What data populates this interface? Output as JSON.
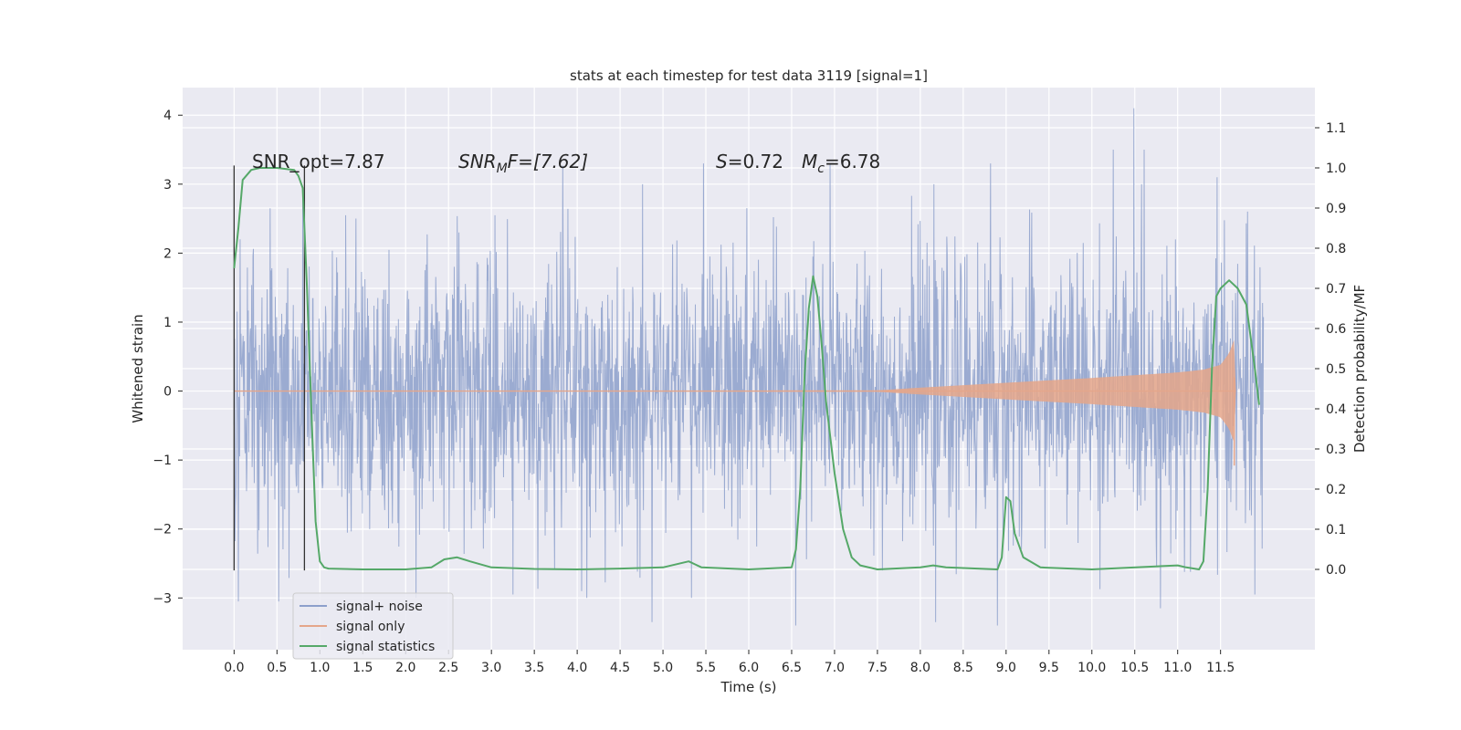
{
  "chart_data": {
    "type": "line",
    "title": "stats at each timestep for test data 3119 [signal=1]",
    "xlabel": "Time (s)",
    "ylabel": "Whitened strain",
    "ylabel_right": "Detection probability/MF",
    "xlim": [
      -0.6,
      12.6
    ],
    "ylim": [
      -3.75,
      4.4
    ],
    "ylim_right": [
      -0.2,
      1.2
    ],
    "x_ticks": [
      0.0,
      0.5,
      1.0,
      1.5,
      2.0,
      2.5,
      3.0,
      3.5,
      4.0,
      4.5,
      5.0,
      5.5,
      6.0,
      6.5,
      7.0,
      7.5,
      8.0,
      8.5,
      9.0,
      9.5,
      10.0,
      10.5,
      11.0,
      11.5
    ],
    "x_tick_labels": [
      "0.0",
      "0.5",
      "1.0",
      "1.5",
      "2.0",
      "2.5",
      "3.0",
      "3.5",
      "4.0",
      "4.5",
      "5.0",
      "5.5",
      "6.0",
      "6.5",
      "7.0",
      "7.5",
      "8.0",
      "8.5",
      "9.0",
      "9.5",
      "10.0",
      "10.5",
      "11.0",
      "11.5"
    ],
    "y_ticks": [
      -3,
      -2,
      -1,
      0,
      1,
      2,
      3,
      4
    ],
    "y_tick_labels": [
      "−3",
      "−2",
      "−1",
      "0",
      "1",
      "2",
      "3",
      "4"
    ],
    "y_ticks_right": [
      0.0,
      0.1,
      0.2,
      0.3,
      0.4,
      0.5,
      0.6,
      0.7,
      0.8,
      0.9,
      1.0,
      1.1
    ],
    "y_tick_labels_right": [
      "0.0",
      "0.1",
      "0.2",
      "0.3",
      "0.4",
      "0.5",
      "0.6",
      "0.7",
      "0.8",
      "0.9",
      "1.0",
      "1.1"
    ],
    "grid": true,
    "legend_position": "bottom-left",
    "annotations": {
      "snr_opt": "SNR_opt=7.87",
      "snr_mf_base": "SNR",
      "snr_mf_sub": "M",
      "snr_mf_rest": "F=[7.62]",
      "s_label": "S",
      "s_value": "=0.72",
      "mc_base": "M",
      "mc_sub": "c",
      "mc_value": "=6.78"
    },
    "window_markers": {
      "x": [
        0.0,
        0.82
      ],
      "y": [
        -2.6,
        3.27
      ]
    },
    "series": [
      {
        "name": "signal+ noise",
        "color": "#8da0cb",
        "axis": "left",
        "duration_s": 12.0,
        "envelope_note": "dense noise, typical amplitude within ±1.5, peaks near 3 to 4",
        "peaks": [
          [
            0.07,
            2.2
          ],
          [
            0.42,
            2.65
          ],
          [
            0.8,
            2.9
          ],
          [
            1.3,
            2.55
          ],
          [
            2.62,
            2.3
          ],
          [
            3.04,
            2.55
          ],
          [
            3.83,
            3.27
          ],
          [
            5.47,
            3.3
          ],
          [
            6.95,
            3.3
          ],
          [
            8.82,
            3.3
          ],
          [
            10.25,
            3.5
          ],
          [
            10.49,
            4.1
          ],
          [
            10.61,
            3.5
          ],
          [
            11.46,
            3.1
          ],
          [
            0.05,
            -3.05
          ],
          [
            0.52,
            -3.05
          ],
          [
            3.25,
            -2.95
          ],
          [
            4.05,
            -2.9
          ],
          [
            4.87,
            -3.35
          ],
          [
            6.55,
            -3.4
          ],
          [
            8.18,
            -3.35
          ],
          [
            8.9,
            -3.4
          ],
          [
            10.8,
            -3.15
          ],
          [
            11.9,
            -2.95
          ]
        ]
      },
      {
        "name": "signal only",
        "color": "#e5a68a",
        "axis": "left",
        "chirp_points": [
          [
            0.0,
            0.0
          ],
          [
            7.5,
            0.01
          ],
          [
            8.0,
            0.05
          ],
          [
            9.0,
            0.12
          ],
          [
            10.0,
            0.19
          ],
          [
            10.5,
            0.23
          ],
          [
            11.0,
            0.27
          ],
          [
            11.3,
            0.31
          ],
          [
            11.5,
            0.38
          ],
          [
            11.6,
            0.55
          ],
          [
            11.66,
            0.75
          ],
          [
            11.68,
            0.0
          ]
        ],
        "min_value": -1.08
      },
      {
        "name": "signal statistics",
        "color": "#55a868",
        "axis": "right",
        "x": [
          0.0,
          0.05,
          0.1,
          0.2,
          0.3,
          0.5,
          0.7,
          0.75,
          0.8,
          0.85,
          0.9,
          0.95,
          1.0,
          1.05,
          1.1,
          1.5,
          2.0,
          2.3,
          2.45,
          2.6,
          2.75,
          3.0,
          3.5,
          4.0,
          4.5,
          5.0,
          5.3,
          5.45,
          6.0,
          6.5,
          6.55,
          6.6,
          6.65,
          6.7,
          6.75,
          6.8,
          6.85,
          6.9,
          7.0,
          7.1,
          7.2,
          7.3,
          7.5,
          8.0,
          8.15,
          8.3,
          8.9,
          8.95,
          9.0,
          9.05,
          9.1,
          9.2,
          9.4,
          10.0,
          11.0,
          11.1,
          11.25,
          11.3,
          11.35,
          11.4,
          11.45,
          11.5,
          11.6,
          11.7,
          11.8,
          11.9,
          11.95
        ],
        "values": [
          0.75,
          0.85,
          0.97,
          0.995,
          1.0,
          1.0,
          0.995,
          0.98,
          0.95,
          0.7,
          0.4,
          0.12,
          0.02,
          0.005,
          0.002,
          0.0,
          0.0,
          0.005,
          0.025,
          0.03,
          0.02,
          0.005,
          0.001,
          0.0,
          0.002,
          0.005,
          0.02,
          0.005,
          0.0,
          0.005,
          0.05,
          0.2,
          0.48,
          0.65,
          0.73,
          0.68,
          0.56,
          0.42,
          0.24,
          0.1,
          0.03,
          0.01,
          0.0,
          0.005,
          0.01,
          0.005,
          0.0,
          0.03,
          0.18,
          0.17,
          0.09,
          0.03,
          0.005,
          0.0,
          0.01,
          0.005,
          0.0,
          0.02,
          0.2,
          0.5,
          0.68,
          0.7,
          0.72,
          0.7,
          0.66,
          0.5,
          0.41
        ]
      }
    ]
  }
}
